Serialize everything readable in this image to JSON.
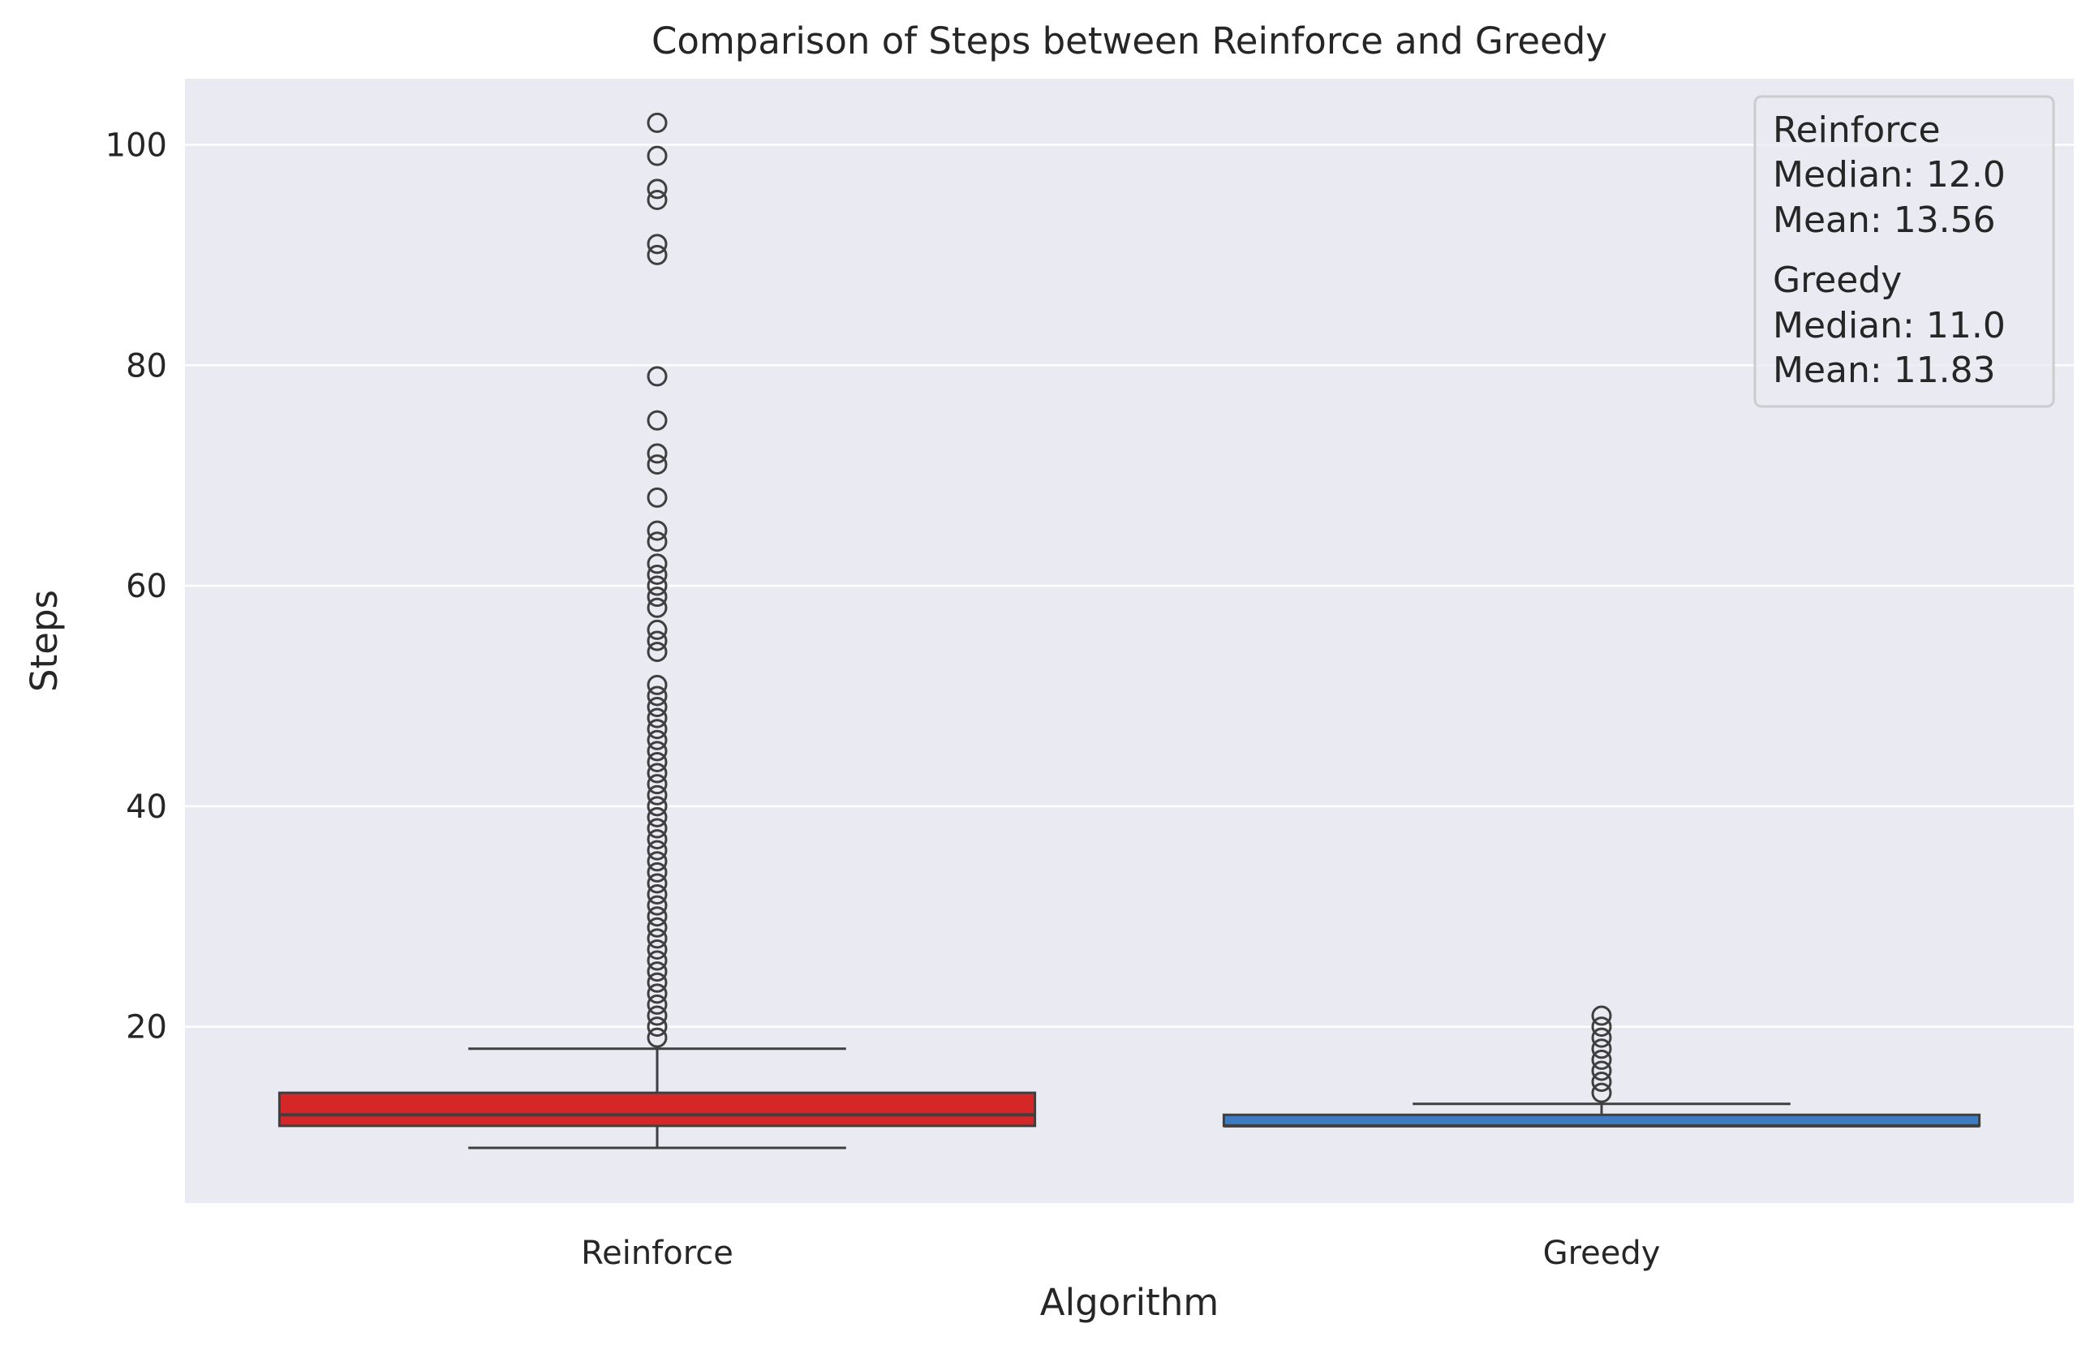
{
  "chart_data": {
    "type": "box",
    "title": "Comparison of Steps between Reinforce and Greedy",
    "xlabel": "Algorithm",
    "ylabel": "Steps",
    "ylim": [
      4,
      106
    ],
    "yticks": [
      20,
      40,
      60,
      80,
      100
    ],
    "grid": true,
    "legend_position": "top-right",
    "categories": [
      "Reinforce",
      "Greedy"
    ],
    "boxes": [
      {
        "name": "Reinforce",
        "color": "#d62728",
        "whisker_low": 9,
        "q1": 11,
        "median": 12,
        "q3": 14,
        "whisker_high": 18,
        "mean": 13.56,
        "outliers": [
          19,
          20,
          21,
          22,
          23,
          24,
          25,
          26,
          27,
          28,
          29,
          30,
          31,
          32,
          33,
          34,
          35,
          36,
          37,
          38,
          39,
          40,
          41,
          42,
          43,
          44,
          45,
          46,
          47,
          48,
          49,
          50,
          51,
          54,
          55,
          56,
          58,
          59,
          60,
          61,
          62,
          64,
          65,
          68,
          71,
          72,
          75,
          79,
          90,
          91,
          95,
          96,
          99,
          102
        ]
      },
      {
        "name": "Greedy",
        "color": "#3d7bc2",
        "whisker_low": 11,
        "q1": 11,
        "median": 11,
        "q3": 12,
        "whisker_high": 13,
        "mean": 11.83,
        "outliers": [
          14,
          15,
          16,
          17,
          18,
          19,
          20,
          21
        ]
      }
    ],
    "legend": [
      {
        "lines": [
          "Reinforce",
          "Median: 12.0",
          "Mean: 13.56"
        ]
      },
      {
        "lines": [
          "Greedy",
          "Median: 11.0",
          "Mean: 11.83"
        ]
      }
    ]
  },
  "colors": {
    "plot_background": "#eaeaf2",
    "grid": "#ffffff",
    "box_edge": "#3f3f3f"
  }
}
